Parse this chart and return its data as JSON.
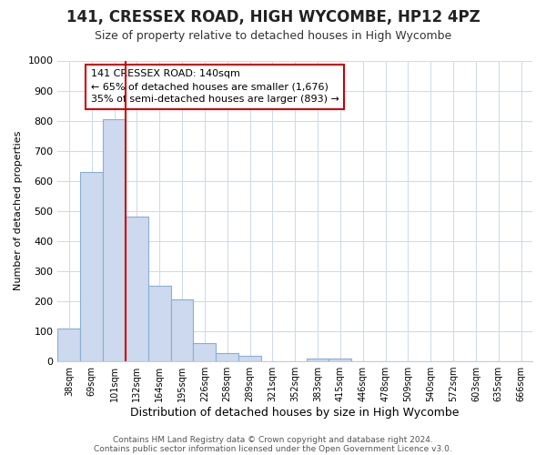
{
  "title": "141, CRESSEX ROAD, HIGH WYCOMBE, HP12 4PZ",
  "subtitle": "Size of property relative to detached houses in High Wycombe",
  "xlabel": "Distribution of detached houses by size in High Wycombe",
  "ylabel": "Number of detached properties",
  "categories": [
    "38sqm",
    "69sqm",
    "101sqm",
    "132sqm",
    "164sqm",
    "195sqm",
    "226sqm",
    "258sqm",
    "289sqm",
    "321sqm",
    "352sqm",
    "383sqm",
    "415sqm",
    "446sqm",
    "478sqm",
    "509sqm",
    "540sqm",
    "572sqm",
    "603sqm",
    "635sqm",
    "666sqm"
  ],
  "values": [
    110,
    630,
    805,
    480,
    250,
    207,
    60,
    28,
    18,
    0,
    0,
    10,
    10,
    0,
    0,
    0,
    0,
    0,
    0,
    0,
    0
  ],
  "bar_color": "#ccd9ee",
  "bar_edge_color": "#8aaed4",
  "vline_color": "#cc0000",
  "annotation_text": "141 CRESSEX ROAD: 140sqm\n← 65% of detached houses are smaller (1,676)\n35% of semi-detached houses are larger (893) →",
  "annotation_box_color": "#ffffff",
  "annotation_box_edge": "#cc0000",
  "ylim": [
    0,
    1000
  ],
  "yticks": [
    0,
    100,
    200,
    300,
    400,
    500,
    600,
    700,
    800,
    900,
    1000
  ],
  "footer_line1": "Contains HM Land Registry data © Crown copyright and database right 2024.",
  "footer_line2": "Contains public sector information licensed under the Open Government Licence v3.0.",
  "bg_color": "#ffffff",
  "plot_bg_color": "#ffffff",
  "grid_color": "#d0dce8"
}
